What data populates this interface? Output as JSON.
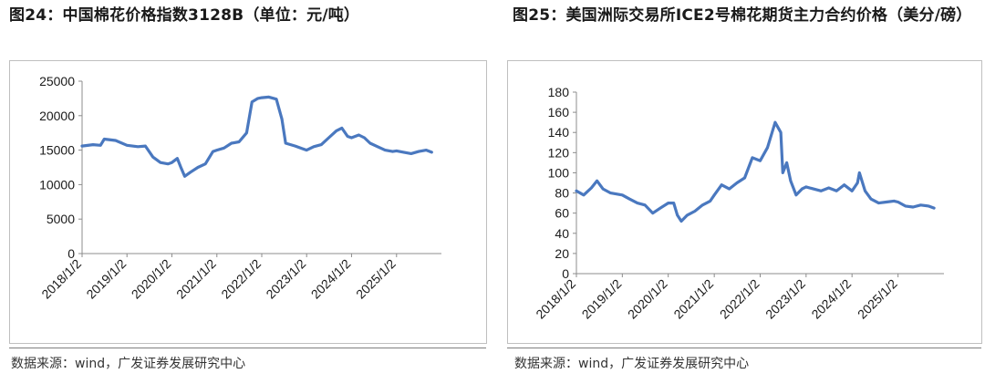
{
  "charts": {
    "left": {
      "title": "图24：中国棉花价格指数3128B（单位：元/吨）",
      "source": "数据来源：wind，广发证券发展研究中心"
    },
    "right": {
      "title": "图25：美国洲际交易所ICE2号棉花期货主力合约价格（美分/磅）",
      "source": "数据来源：wind，广发证券发展研究中心"
    }
  },
  "colors": {
    "series": "#4a78bf",
    "axis": "#8c8c8c",
    "frame": "#bfbfbf"
  },
  "chart_data": [
    {
      "type": "line",
      "title": "图24：中国棉花价格指数3128B（单位：元/吨）",
      "xlabel": "",
      "ylabel": "",
      "ylim": [
        0,
        25000
      ],
      "yticks": [
        0,
        5000,
        10000,
        15000,
        20000,
        25000
      ],
      "xlim": [
        "2018/1/2",
        "2026/1/2"
      ],
      "xticks": [
        "2018/1/2",
        "2019/1/2",
        "2020/1/2",
        "2021/1/2",
        "2022/1/2",
        "2023/1/2",
        "2024/1/2",
        "2025/1/2"
      ],
      "grid": false,
      "series": [
        {
          "x": [
            "2018/1/2",
            "2018/4/1",
            "2018/6/1",
            "2018/7/1",
            "2018/10/1",
            "2019/1/2",
            "2019/4/1",
            "2019/6/1",
            "2019/8/1",
            "2019/10/1",
            "2019/12/1",
            "2020/1/2",
            "2020/2/15",
            "2020/3/15",
            "2020/4/15",
            "2020/6/1",
            "2020/8/1",
            "2020/10/1",
            "2020/12/1",
            "2021/1/2",
            "2021/3/1",
            "2021/5/1",
            "2021/7/1",
            "2021/9/1",
            "2021/10/15",
            "2021/12/1",
            "2022/1/2",
            "2022/3/1",
            "2022/5/1",
            "2022/6/15",
            "2022/7/15",
            "2022/10/1",
            "2022/12/1",
            "2023/1/2",
            "2023/3/1",
            "2023/5/1",
            "2023/7/1",
            "2023/9/1",
            "2023/10/15",
            "2023/12/1",
            "2024/1/2",
            "2024/3/1",
            "2024/4/15",
            "2024/6/1",
            "2024/8/1",
            "2024/10/1",
            "2024/12/1",
            "2025/1/2",
            "2025/3/1",
            "2025/5/1",
            "2025/7/1",
            "2025/9/1",
            "2025/10/15"
          ],
          "values": [
            15600,
            15800,
            15700,
            16600,
            16400,
            15700,
            15500,
            15600,
            14000,
            13200,
            13000,
            13200,
            13800,
            12500,
            11200,
            11800,
            12500,
            13000,
            14800,
            15000,
            15300,
            16000,
            16200,
            17500,
            22000,
            22500,
            22600,
            22700,
            22400,
            19500,
            16000,
            15600,
            15200,
            15000,
            15500,
            15800,
            16800,
            17800,
            18200,
            17000,
            16800,
            17200,
            16800,
            16000,
            15500,
            15000,
            14800,
            14900,
            14700,
            14500,
            14800,
            15000,
            14700
          ]
        }
      ]
    },
    {
      "type": "line",
      "title": "图25：美国洲际交易所ICE2号棉花期货主力合约价格（美分/磅）",
      "xlabel": "",
      "ylabel": "",
      "ylim": [
        0,
        180
      ],
      "yticks": [
        0,
        20,
        40,
        60,
        80,
        100,
        120,
        140,
        160,
        180
      ],
      "xlim": [
        "2018/1/2",
        "2026/1/2"
      ],
      "xticks": [
        "2018/1/2",
        "2019/1/2",
        "2020/1/2",
        "2021/1/2",
        "2022/1/2",
        "2023/1/2",
        "2024/1/2",
        "2025/1/2"
      ],
      "grid": false,
      "series": [
        {
          "x": [
            "2018/1/2",
            "2018/3/1",
            "2018/5/1",
            "2018/6/15",
            "2018/8/1",
            "2018/10/1",
            "2019/1/2",
            "2019/3/1",
            "2019/5/1",
            "2019/7/1",
            "2019/9/1",
            "2019/11/1",
            "2020/1/2",
            "2020/2/15",
            "2020/3/15",
            "2020/4/15",
            "2020/6/1",
            "2020/8/1",
            "2020/10/1",
            "2020/12/1",
            "2021/1/2",
            "2021/3/1",
            "2021/5/1",
            "2021/7/1",
            "2021/9/1",
            "2021/11/1",
            "2022/1/2",
            "2022/3/1",
            "2022/5/1",
            "2022/6/15",
            "2022/7/1",
            "2022/8/1",
            "2022/9/1",
            "2022/10/15",
            "2022/12/1",
            "2023/1/2",
            "2023/3/1",
            "2023/5/1",
            "2023/7/1",
            "2023/9/1",
            "2023/11/1",
            "2024/1/2",
            "2024/2/15",
            "2024/3/1",
            "2024/4/15",
            "2024/6/1",
            "2024/8/1",
            "2024/10/1",
            "2024/12/1",
            "2025/1/2",
            "2025/3/1",
            "2025/5/1",
            "2025/7/1",
            "2025/9/1",
            "2025/10/15"
          ],
          "values": [
            82,
            78,
            85,
            92,
            84,
            80,
            78,
            74,
            70,
            68,
            60,
            65,
            70,
            70,
            58,
            52,
            58,
            62,
            68,
            72,
            78,
            88,
            84,
            90,
            95,
            115,
            112,
            125,
            150,
            140,
            100,
            110,
            92,
            78,
            84,
            86,
            84,
            82,
            85,
            82,
            88,
            82,
            90,
            100,
            82,
            74,
            70,
            71,
            72,
            71,
            67,
            66,
            68,
            67,
            65
          ]
        }
      ]
    }
  ]
}
